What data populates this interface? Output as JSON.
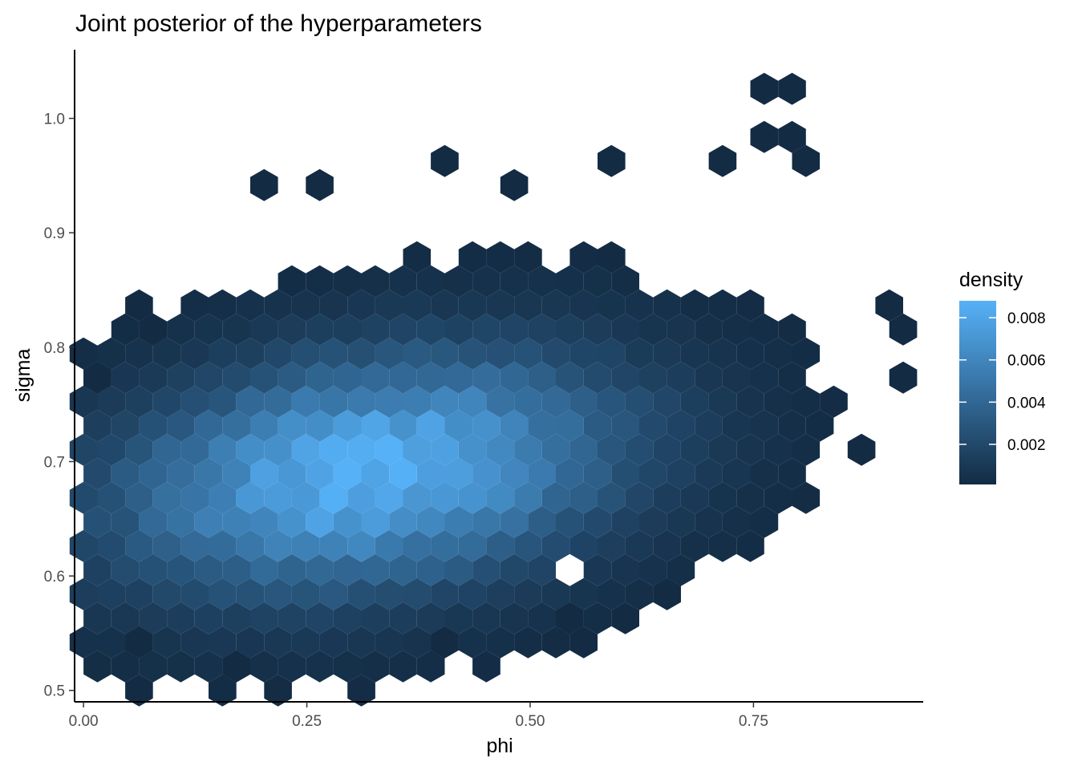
{
  "chart_data": {
    "type": "heatmap",
    "subtype": "hexbin",
    "title": "Joint posterior of the hyperparameters",
    "xlabel": "phi",
    "ylabel": "sigma",
    "xlim": [
      -0.01,
      0.94
    ],
    "ylim": [
      0.49,
      1.06
    ],
    "x_ticks": [
      {
        "value": 0.0,
        "label": "0.00"
      },
      {
        "value": 0.25,
        "label": "0.25"
      },
      {
        "value": 0.5,
        "label": "0.50"
      },
      {
        "value": 0.75,
        "label": "0.75"
      }
    ],
    "y_ticks": [
      {
        "value": 0.5,
        "label": "0.5"
      },
      {
        "value": 0.6,
        "label": "0.6"
      },
      {
        "value": 0.7,
        "label": "0.7"
      },
      {
        "value": 0.8,
        "label": "0.8"
      },
      {
        "value": 0.9,
        "label": "0.9"
      },
      {
        "value": 1.0,
        "label": "1.0"
      }
    ],
    "grid": false,
    "legend": {
      "title": "density",
      "placement": "right",
      "min": 0.0001,
      "max": 0.0088,
      "low_color": "#132B43",
      "high_color": "#56B1F7",
      "ticks": [
        {
          "value": 0.002,
          "label": "0.002"
        },
        {
          "value": 0.004,
          "label": "0.004"
        },
        {
          "value": 0.006,
          "label": "0.006"
        },
        {
          "value": 0.008,
          "label": "0.008"
        }
      ]
    },
    "density_model": {
      "peak_phi": 0.32,
      "peak_sigma": 0.69,
      "sd_phi": 0.19,
      "sd_sigma": 0.07,
      "correlation": 0.25,
      "peak_density": 0.0088,
      "support_threshold": 0.00022
    },
    "outlier_cells": [
      {
        "phi": 0.0,
        "sigma": 0.782
      },
      {
        "phi": 0.065,
        "sigma": 0.824
      },
      {
        "phi": 0.075,
        "sigma": 0.543
      },
      {
        "phi": 0.165,
        "sigma": 0.513
      },
      {
        "phi": 0.205,
        "sigma": 0.945
      },
      {
        "phi": 0.26,
        "sigma": 0.945
      },
      {
        "phi": 0.4,
        "sigma": 0.96
      },
      {
        "phi": 0.47,
        "sigma": 0.945
      },
      {
        "phi": 0.58,
        "sigma": 0.96
      },
      {
        "phi": 0.755,
        "sigma": 1.02
      },
      {
        "phi": 0.8,
        "sigma": 1.035
      },
      {
        "phi": 0.755,
        "sigma": 0.99
      },
      {
        "phi": 0.78,
        "sigma": 0.975
      },
      {
        "phi": 0.815,
        "sigma": 0.96
      },
      {
        "phi": 0.7,
        "sigma": 0.96
      },
      {
        "phi": 0.86,
        "sigma": 0.71
      },
      {
        "phi": 0.895,
        "sigma": 0.84
      },
      {
        "phi": 0.905,
        "sigma": 0.81
      },
      {
        "phi": 0.905,
        "sigma": 0.78
      },
      {
        "phi": 0.645,
        "sigma": 0.585
      },
      {
        "phi": 0.605,
        "sigma": 0.57
      },
      {
        "phi": 0.415,
        "sigma": 0.543
      },
      {
        "phi": 0.54,
        "sigma": 0.557
      }
    ],
    "empty_cells": [
      {
        "phi": 0.355,
        "sigma": 0.885
      },
      {
        "phi": 0.535,
        "sigma": 0.6
      },
      {
        "phi": 0.285,
        "sigma": 0.87
      }
    ]
  }
}
